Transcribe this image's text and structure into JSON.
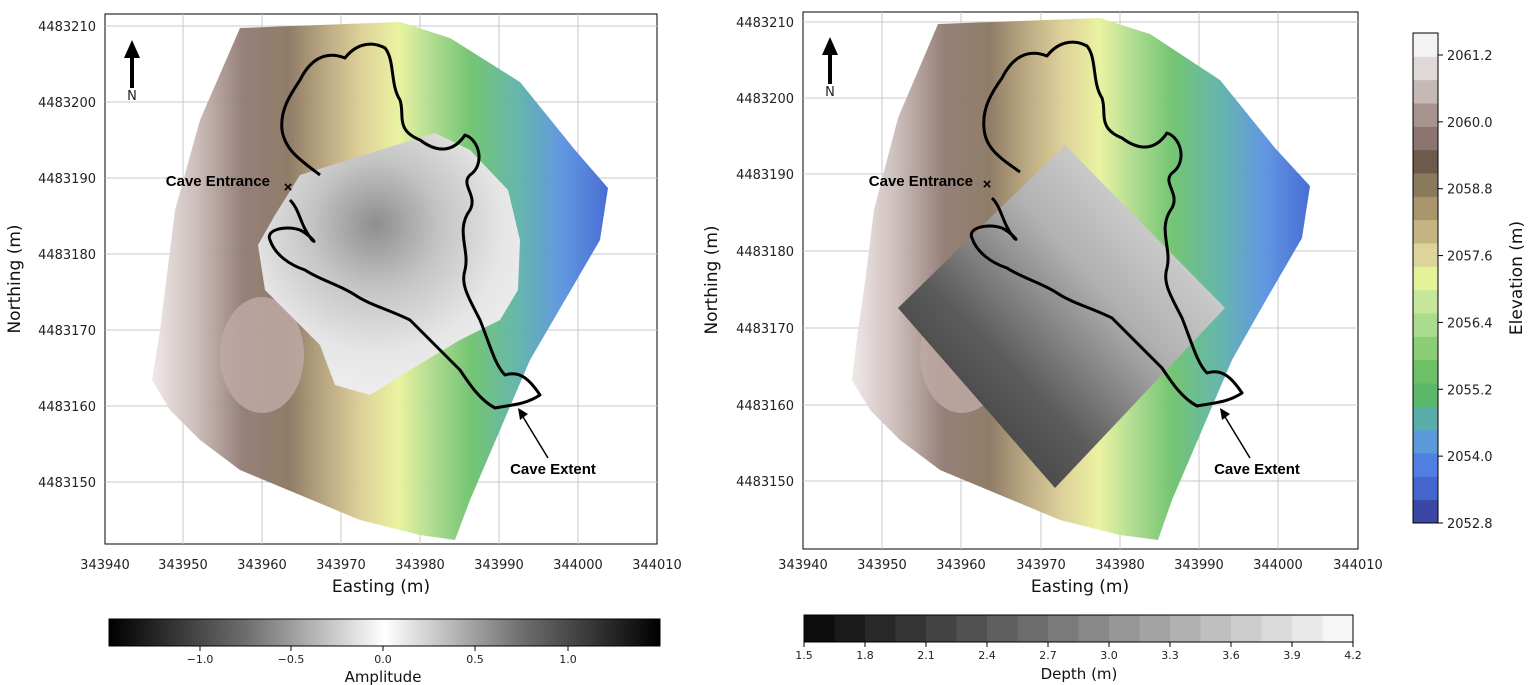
{
  "maps": [
    {
      "xlabel": "Easting (m)",
      "ylabel": "Northing (m)",
      "xticks": [
        "343940",
        "343950",
        "343960",
        "343970",
        "343980",
        "343990",
        "344000",
        "344010"
      ],
      "yticks": [
        "4483210",
        "4483200",
        "4483190",
        "4483180",
        "4483170",
        "4483160",
        "4483150"
      ],
      "north_label": "N",
      "entrance_label": "Cave Entrance",
      "extent_label": "Cave Extent",
      "overlay": "GPR amplitude"
    },
    {
      "xlabel": "Easting (m)",
      "ylabel": "Northing (m)",
      "xticks": [
        "343940",
        "343950",
        "343960",
        "343970",
        "343980",
        "343990",
        "344000",
        "344010"
      ],
      "yticks": [
        "4483210",
        "4483200",
        "4483190",
        "4483180",
        "4483170",
        "4483160",
        "4483150"
      ],
      "north_label": "N",
      "entrance_label": "Cave Entrance",
      "extent_label": "Cave Extent",
      "overlay": "depth"
    }
  ],
  "amplitude_colorbar": {
    "label": "Amplitude",
    "ticks": [
      "−1.0",
      "−0.5",
      "0.0",
      "0.5",
      "1.0"
    ]
  },
  "depth_colorbar": {
    "label": "Depth (m)",
    "ticks": [
      "1.5",
      "1.8",
      "2.1",
      "2.4",
      "2.7",
      "3.0",
      "3.3",
      "3.6",
      "3.9",
      "4.2"
    ]
  },
  "elevation_colorbar": {
    "label": "Elevation (m)",
    "ticks": [
      "2061.2",
      "2060.0",
      "2058.8",
      "2057.6",
      "2056.4",
      "2055.2",
      "2054.0",
      "2052.8"
    ],
    "colors": [
      "#3b47a6",
      "#4466cc",
      "#4f7fe0",
      "#5b9ad8",
      "#5aaea8",
      "#5bb86a",
      "#6cc066",
      "#8acf78",
      "#a9dc8c",
      "#c6e69a",
      "#e5f29a",
      "#ddd49a",
      "#c4b482",
      "#a8956c",
      "#8a7a5c",
      "#6e5a4c",
      "#8c7470",
      "#a8948e",
      "#c6b8b4",
      "#e0d8d6",
      "#f4f2f2"
    ]
  }
}
